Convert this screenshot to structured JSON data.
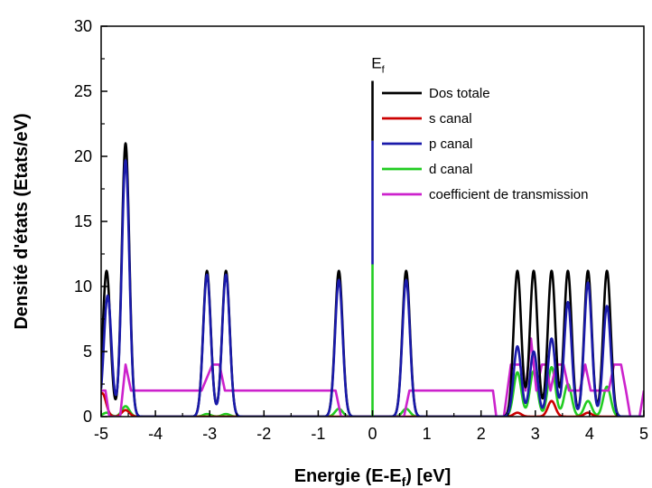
{
  "chart_data": {
    "type": "line",
    "xlabel_main": "Energie (E-E",
    "xlabel_sub": "f",
    "xlabel_end": ") [eV]",
    "ylabel": "Densité d'états (Etats/eV)",
    "xlim": [
      -5,
      5
    ],
    "ylim": [
      0,
      30
    ],
    "xticks": [
      "-5",
      "-4",
      "-3",
      "-2",
      "-1",
      "0",
      "1",
      "2",
      "3",
      "4",
      "5"
    ],
    "yticks": [
      "0",
      "5",
      "10",
      "15",
      "20",
      "25",
      "30"
    ],
    "xtick_values": [
      -5,
      -4,
      -3,
      -2,
      -1,
      0,
      1,
      2,
      3,
      4,
      5
    ],
    "ytick_values": [
      0,
      5,
      10,
      15,
      20,
      25,
      30
    ],
    "grid": false,
    "legend_position": "top-right",
    "fermi_label_main": "E",
    "fermi_label_sub": "f",
    "fermi_line": {
      "x": 0,
      "segments": [
        {
          "from": 0,
          "to": 11.7,
          "color": "#22cc22"
        },
        {
          "from": 11.7,
          "to": 21.2,
          "color": "#1a1aaa"
        },
        {
          "from": 21.2,
          "to": 25.8,
          "color": "#000000"
        }
      ]
    },
    "peak_width": 0.07,
    "series": [
      {
        "name": "Dos totale",
        "color": "#000000",
        "peaks": [
          [
            -4.9,
            11.2
          ],
          [
            -4.55,
            21.0
          ],
          [
            -3.05,
            11.2
          ],
          [
            -2.7,
            11.2
          ],
          [
            -0.62,
            11.2
          ],
          [
            0.62,
            11.2
          ],
          [
            2.67,
            11.2
          ],
          [
            2.97,
            11.2
          ],
          [
            3.3,
            11.2
          ],
          [
            3.6,
            11.2
          ],
          [
            3.97,
            11.2
          ],
          [
            4.32,
            11.2
          ]
        ]
      },
      {
        "name": "s canal",
        "color": "#cc0000",
        "peaks": [
          [
            -4.98,
            1.8
          ],
          [
            -4.55,
            0.5
          ],
          [
            2.67,
            0.3
          ],
          [
            3.3,
            1.2
          ],
          [
            3.97,
            0.3
          ]
        ]
      },
      {
        "name": "p canal",
        "color": "#1a1aaa",
        "peaks": [
          [
            -4.88,
            9.3
          ],
          [
            -4.55,
            19.7
          ],
          [
            -3.05,
            10.9
          ],
          [
            -2.7,
            10.9
          ],
          [
            -0.62,
            10.5
          ],
          [
            0.62,
            10.5
          ],
          [
            2.67,
            5.4
          ],
          [
            2.97,
            5.0
          ],
          [
            3.3,
            6.0
          ],
          [
            3.6,
            8.8
          ],
          [
            3.97,
            10.3
          ],
          [
            4.32,
            8.5
          ]
        ]
      },
      {
        "name": "d canal",
        "color": "#22cc22",
        "peaks": [
          [
            -4.9,
            0.3
          ],
          [
            -4.55,
            0.8
          ],
          [
            -3.05,
            0.2
          ],
          [
            -2.7,
            0.2
          ],
          [
            -0.62,
            0.6
          ],
          [
            0.62,
            0.6
          ],
          [
            2.67,
            3.4
          ],
          [
            2.97,
            3.5
          ],
          [
            3.3,
            3.8
          ],
          [
            3.6,
            2.5
          ],
          [
            3.97,
            1.2
          ],
          [
            4.32,
            2.3
          ]
        ]
      },
      {
        "name": "coefficient de transmission",
        "color": "#cc22cc",
        "points": [
          [
            -5,
            2
          ],
          [
            -4.92,
            2
          ],
          [
            -4.85,
            0
          ],
          [
            -4.65,
            0
          ],
          [
            -4.55,
            4
          ],
          [
            -4.45,
            2
          ],
          [
            -3.25,
            2
          ],
          [
            -3.15,
            2
          ],
          [
            -2.95,
            4
          ],
          [
            -2.82,
            4
          ],
          [
            -2.72,
            2
          ],
          [
            -0.68,
            2
          ],
          [
            -0.58,
            0
          ],
          [
            0.58,
            0
          ],
          [
            0.68,
            2
          ],
          [
            2.22,
            2
          ],
          [
            2.28,
            0
          ],
          [
            2.42,
            0
          ],
          [
            2.55,
            4
          ],
          [
            2.72,
            4
          ],
          [
            2.82,
            2
          ],
          [
            2.92,
            6
          ],
          [
            3.02,
            2
          ],
          [
            3.12,
            4
          ],
          [
            3.2,
            4
          ],
          [
            3.28,
            2
          ],
          [
            3.38,
            4
          ],
          [
            3.52,
            4
          ],
          [
            3.62,
            2
          ],
          [
            3.72,
            2
          ],
          [
            3.82,
            2
          ],
          [
            3.92,
            4
          ],
          [
            4.02,
            2
          ],
          [
            4.12,
            2
          ],
          [
            4.25,
            2
          ],
          [
            4.35,
            2
          ],
          [
            4.45,
            4
          ],
          [
            4.58,
            4
          ],
          [
            4.67,
            2
          ],
          [
            4.75,
            0
          ],
          [
            4.92,
            0
          ],
          [
            5,
            2
          ]
        ]
      }
    ]
  }
}
